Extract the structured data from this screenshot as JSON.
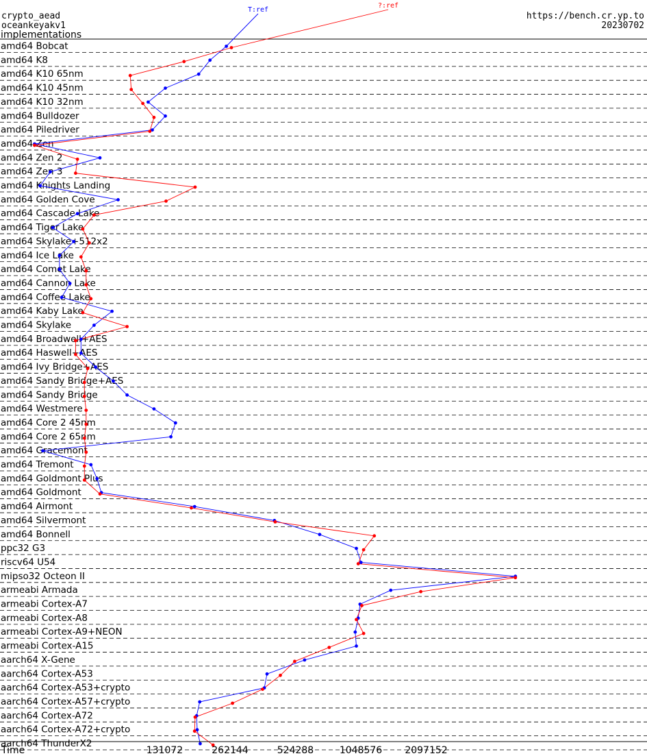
{
  "header": {
    "primitive": "crypto_aead",
    "implementation": "oceankeyakv1",
    "section": "implementations",
    "site": "https://bench.cr.yp.to",
    "date": "20230702"
  },
  "chart_data": {
    "type": "line",
    "xlabel": "Time",
    "x_scale": "log2",
    "x_ticks": [
      "131072",
      "262144",
      "524288",
      "1048576",
      "2097152"
    ],
    "xlim": [
      28000,
      5800000
    ],
    "series": [
      {
        "name": "T:ref",
        "color": "#0000ff"
      },
      {
        "name": "?:ref",
        "color": "#ff0000"
      }
    ],
    "platforms": [
      {
        "label": "amd64 Bobcat",
        "ref": 252000,
        "unk": 266000
      },
      {
        "label": "amd64 K8",
        "ref": 212000,
        "unk": 161000
      },
      {
        "label": "amd64 K10 65nm",
        "ref": 188000,
        "unk": 91000
      },
      {
        "label": "amd64 K10 45nm",
        "ref": 132000,
        "unk": 92000
      },
      {
        "label": "amd64 K10 32nm",
        "ref": 110000,
        "unk": 104000
      },
      {
        "label": "amd64 Bulldozer",
        "ref": 132000,
        "unk": 117000
      },
      {
        "label": "amd64 Piledriver",
        "ref": 115000,
        "unk": 112000
      },
      {
        "label": "amd64 Zen",
        "ref": 33000,
        "unk": 33000
      },
      {
        "label": "amd64 Zen 2",
        "ref": 66000,
        "unk": 52000
      },
      {
        "label": "amd64 Zen 3",
        "ref": 39000,
        "unk": 51000
      },
      {
        "label": "amd64 Knights Landing",
        "ref": 35000,
        "unk": 181000
      },
      {
        "label": "amd64 Golden Cove",
        "ref": 80000,
        "unk": 133000
      },
      {
        "label": "amd64 Cascade Lake",
        "ref": 52000,
        "unk": 62000
      },
      {
        "label": "amd64 Tiger Lake",
        "ref": 40000,
        "unk": 55000
      },
      {
        "label": "amd64 Skylake+512x2",
        "ref": 50000,
        "unk": 59000
      },
      {
        "label": "amd64 Ice Lake",
        "ref": 43000,
        "unk": 54000
      },
      {
        "label": "amd64 Comet Lake",
        "ref": 43000,
        "unk": 57000
      },
      {
        "label": "amd64 Cannon Lake",
        "ref": 48000,
        "unk": 57000
      },
      {
        "label": "amd64 Coffee Lake",
        "ref": 44000,
        "unk": 60000
      },
      {
        "label": "amd64 Kaby Lake",
        "ref": 75000,
        "unk": 55000
      },
      {
        "label": "amd64 Skylake",
        "ref": 62000,
        "unk": 88000
      },
      {
        "label": "amd64 Broadwell+AES",
        "ref": 54000,
        "unk": 51000
      },
      {
        "label": "amd64 Haswell+AES",
        "ref": 54000,
        "unk": 51000
      },
      {
        "label": "amd64 Ivy Bridge+AES",
        "ref": 63000,
        "unk": 58000
      },
      {
        "label": "amd64 Sandy Bridge+AES",
        "ref": 76000,
        "unk": 56000
      },
      {
        "label": "amd64 Sandy Bridge",
        "ref": 88000,
        "unk": 56000
      },
      {
        "label": "amd64 Westmere",
        "ref": 117000,
        "unk": 57000
      },
      {
        "label": "amd64 Core 2 45nm",
        "ref": 147000,
        "unk": 57000
      },
      {
        "label": "amd64 Core 2 65nm",
        "ref": 140000,
        "unk": 56000
      },
      {
        "label": "amd64 Gracemont",
        "ref": 36000,
        "unk": 57000
      },
      {
        "label": "amd64 Tremont",
        "ref": 60000,
        "unk": 56000
      },
      {
        "label": "amd64 Goldmont Plus",
        "ref": 64000,
        "unk": 56000
      },
      {
        "label": "amd64 Goldmont",
        "ref": 67000,
        "unk": 66000
      },
      {
        "label": "amd64 Airmont",
        "ref": 180000,
        "unk": 174000
      },
      {
        "label": "amd64 Silvermont",
        "ref": 420000,
        "unk": 423000
      },
      {
        "label": "amd64 Bonnell",
        "ref": 678000,
        "unk": 1210000
      },
      {
        "label": "ppc32 G3",
        "ref": 1000000,
        "unk": 1080000
      },
      {
        "label": "riscv64 U54",
        "ref": 1050000,
        "unk": 1020000
      },
      {
        "label": "mipso32 Octeon II",
        "ref": 5400000,
        "unk": 5400000
      },
      {
        "label": "armeabi Armada",
        "ref": 1440000,
        "unk": 1980000
      },
      {
        "label": "armeabi Cortex-A7",
        "ref": 1040000,
        "unk": 1060000
      },
      {
        "label": "armeabi Cortex-A8",
        "ref": 1020000,
        "unk": 1000000
      },
      {
        "label": "armeabi Cortex-A9+NEON",
        "ref": 988000,
        "unk": 1080000
      },
      {
        "label": "armeabi Cortex-A15",
        "ref": 1000000,
        "unk": 750000
      },
      {
        "label": "aarch64 X-Gene",
        "ref": 578000,
        "unk": 520000
      },
      {
        "label": "aarch64 Cortex-A53",
        "ref": 388000,
        "unk": 447000
      },
      {
        "label": "aarch64 Cortex-A53+crypto",
        "ref": 377000,
        "unk": 370000
      },
      {
        "label": "aarch64 Cortex-A57+crypto",
        "ref": 190000,
        "unk": 269000
      },
      {
        "label": "aarch64 Cortex-A72",
        "ref": 184000,
        "unk": 181000
      },
      {
        "label": "aarch64 Cortex-A72+crypto",
        "ref": 185000,
        "unk": 180000
      },
      {
        "label": "aarch64 ThunderX2",
        "ref": 191000,
        "unk": 219000
      }
    ]
  }
}
